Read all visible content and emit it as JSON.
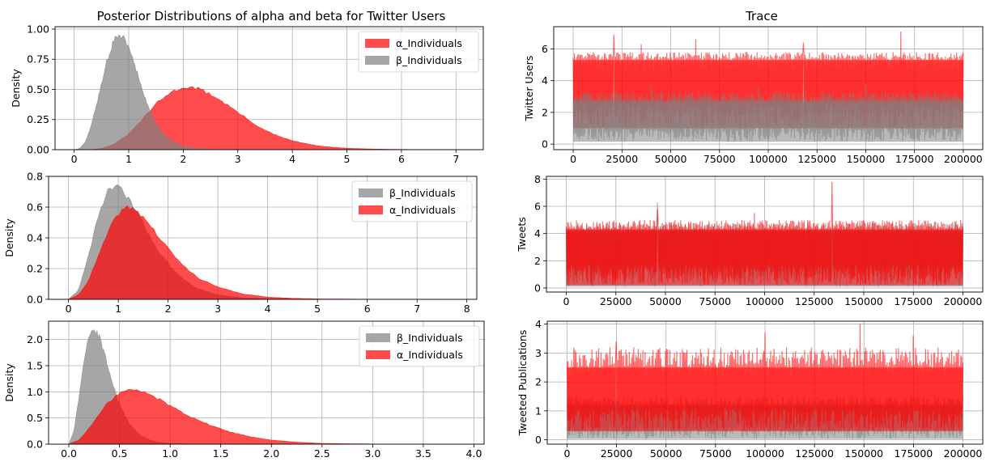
{
  "figure": {
    "left_title": "Posterior Distributions of alpha and beta for Twitter Users",
    "right_title": "Trace"
  },
  "colors": {
    "alpha": "#ff0000",
    "beta": "#808080",
    "grid": "#b0b0b0"
  },
  "chart_data": [
    {
      "type": "area",
      "panel": "hist-1",
      "ylabel": "Density",
      "xlim": [
        -0.35,
        7.5
      ],
      "ylim": [
        0,
        1.02
      ],
      "xticks": [
        0,
        1,
        2,
        3,
        4,
        5,
        6,
        7
      ],
      "xticklabels": [
        "0",
        "1",
        "2",
        "3",
        "4",
        "5",
        "6",
        "7"
      ],
      "yticks": [
        0,
        0.25,
        0.5,
        0.75,
        1.0
      ],
      "yticklabels": [
        "0.00",
        "0.25",
        "0.50",
        "0.75",
        "1.00"
      ],
      "grid": true,
      "legend": {
        "position": "top-right",
        "entries": [
          "α_Individuals",
          "β_Individuals"
        ]
      },
      "series": [
        {
          "name": "α_Individuals",
          "color": "#ff0000",
          "opacity": 0.7,
          "x": [
            0.3,
            0.5,
            0.75,
            1.0,
            1.25,
            1.5,
            1.75,
            2.0,
            2.25,
            2.5,
            2.75,
            3.0,
            3.25,
            3.5,
            3.75,
            4.0,
            4.25,
            4.5,
            4.75,
            5.0,
            5.5,
            6.0,
            6.5,
            7.2
          ],
          "y": [
            0.0,
            0.01,
            0.05,
            0.13,
            0.25,
            0.38,
            0.47,
            0.52,
            0.51,
            0.46,
            0.39,
            0.31,
            0.23,
            0.16,
            0.11,
            0.075,
            0.05,
            0.03,
            0.02,
            0.012,
            0.005,
            0.002,
            0.001,
            0.0
          ]
        },
        {
          "name": "β_Individuals",
          "color": "#808080",
          "opacity": 0.7,
          "x": [
            0.0,
            0.1,
            0.2,
            0.3,
            0.4,
            0.5,
            0.6,
            0.7,
            0.8,
            0.9,
            1.0,
            1.1,
            1.2,
            1.3,
            1.4,
            1.5,
            1.6,
            1.8,
            2.0,
            2.2,
            2.5,
            3.0
          ],
          "y": [
            0.0,
            0.01,
            0.06,
            0.18,
            0.35,
            0.55,
            0.73,
            0.87,
            0.95,
            0.94,
            0.85,
            0.72,
            0.57,
            0.43,
            0.31,
            0.22,
            0.15,
            0.07,
            0.03,
            0.012,
            0.004,
            0.0
          ]
        }
      ]
    },
    {
      "type": "area",
      "panel": "hist-2",
      "ylabel": "Density",
      "xlim": [
        -0.4,
        8.2
      ],
      "ylim": [
        0,
        0.8
      ],
      "xticks": [
        0,
        1,
        2,
        3,
        4,
        5,
        6,
        7,
        8
      ],
      "xticklabels": [
        "0",
        "1",
        "2",
        "3",
        "4",
        "5",
        "6",
        "7",
        "8"
      ],
      "yticks": [
        0,
        0.2,
        0.4,
        0.6,
        0.8
      ],
      "yticklabels": [
        "0.0",
        "0.2",
        "0.4",
        "0.6",
        "0.8"
      ],
      "grid": true,
      "legend": {
        "position": "top-right",
        "entries": [
          "β_Individuals",
          "α_Individuals"
        ]
      },
      "series": [
        {
          "name": "β_Individuals",
          "color": "#808080",
          "opacity": 0.7,
          "x": [
            0.0,
            0.2,
            0.4,
            0.6,
            0.8,
            1.0,
            1.2,
            1.4,
            1.6,
            1.8,
            2.0,
            2.3,
            2.6,
            3.0,
            3.5,
            4.0,
            5.0,
            6.5
          ],
          "y": [
            0.0,
            0.06,
            0.28,
            0.55,
            0.71,
            0.73,
            0.66,
            0.55,
            0.43,
            0.32,
            0.23,
            0.13,
            0.07,
            0.03,
            0.01,
            0.004,
            0.001,
            0.0
          ]
        },
        {
          "name": "α_Individuals",
          "color": "#ff0000",
          "opacity": 0.7,
          "x": [
            0.0,
            0.2,
            0.4,
            0.6,
            0.8,
            1.0,
            1.2,
            1.4,
            1.6,
            1.8,
            2.0,
            2.3,
            2.6,
            3.0,
            3.5,
            4.0,
            4.5,
            5.0,
            6.0,
            7.5
          ],
          "y": [
            0.0,
            0.03,
            0.12,
            0.28,
            0.44,
            0.56,
            0.6,
            0.57,
            0.5,
            0.41,
            0.33,
            0.22,
            0.14,
            0.08,
            0.035,
            0.015,
            0.007,
            0.003,
            0.001,
            0.0
          ]
        }
      ]
    },
    {
      "type": "area",
      "panel": "hist-3",
      "ylabel": "Density",
      "xlim": [
        -0.2,
        4.1
      ],
      "ylim": [
        0,
        2.35
      ],
      "xticks": [
        0,
        0.5,
        1.0,
        1.5,
        2.0,
        2.5,
        3.0,
        3.5,
        4.0
      ],
      "xticklabels": [
        "0.0",
        "0.5",
        "1.0",
        "1.5",
        "2.0",
        "2.5",
        "3.0",
        "3.5",
        "4.0"
      ],
      "yticks": [
        0,
        0.5,
        1.0,
        1.5,
        2.0
      ],
      "yticklabels": [
        "0.0",
        "0.5",
        "1.0",
        "1.5",
        "2.0"
      ],
      "grid": true,
      "legend": {
        "position": "top-right",
        "entries": [
          "β_Individuals",
          "α_Individuals"
        ]
      },
      "series": [
        {
          "name": "β_Individuals",
          "color": "#808080",
          "opacity": 0.7,
          "x": [
            0.0,
            0.05,
            0.1,
            0.15,
            0.2,
            0.25,
            0.3,
            0.35,
            0.4,
            0.45,
            0.5,
            0.6,
            0.7,
            0.8,
            0.9,
            1.0,
            1.2,
            1.5
          ],
          "y": [
            0.0,
            0.25,
            0.9,
            1.6,
            2.05,
            2.2,
            2.05,
            1.75,
            1.4,
            1.05,
            0.75,
            0.38,
            0.18,
            0.08,
            0.035,
            0.015,
            0.003,
            0.0
          ]
        },
        {
          "name": "α_Individuals",
          "color": "#ff0000",
          "opacity": 0.7,
          "x": [
            0.0,
            0.1,
            0.2,
            0.3,
            0.4,
            0.5,
            0.6,
            0.7,
            0.8,
            0.9,
            1.0,
            1.2,
            1.4,
            1.6,
            1.8,
            2.0,
            2.2,
            2.5,
            3.0,
            3.6
          ],
          "y": [
            0.0,
            0.08,
            0.3,
            0.57,
            0.82,
            0.98,
            1.04,
            1.02,
            0.95,
            0.85,
            0.74,
            0.53,
            0.36,
            0.23,
            0.14,
            0.08,
            0.045,
            0.015,
            0.003,
            0.0
          ]
        }
      ]
    },
    {
      "type": "line",
      "panel": "trace-1",
      "ylabel": "Twitter Users",
      "xlim": [
        -10000,
        210000
      ],
      "ylim": [
        -0.35,
        7.4
      ],
      "xticks": [
        0,
        25000,
        50000,
        75000,
        100000,
        125000,
        150000,
        175000,
        200000
      ],
      "xticklabels": [
        "0",
        "25000",
        "50000",
        "75000",
        "100000",
        "125000",
        "150000",
        "175000",
        "200000"
      ],
      "yticks": [
        0,
        2,
        4,
        6
      ],
      "yticklabels": [
        "0",
        "2",
        "4",
        "6"
      ],
      "grid": true,
      "series": [
        {
          "name": "α_Individuals",
          "color": "#ff0000",
          "opacity": 0.6,
          "x_range": [
            0,
            200000
          ],
          "band_low": 1.0,
          "band_high": 5.3,
          "typical_max": 5.8,
          "spikes": [
            [
              21000,
              6.9
            ],
            [
              63000,
              6.6
            ],
            [
              168000,
              7.1
            ],
            [
              118000,
              6.4
            ],
            [
              35000,
              6.3
            ]
          ]
        },
        {
          "name": "β_Individuals",
          "color": "#808080",
          "opacity": 0.6,
          "x_range": [
            0,
            200000
          ],
          "band_low": 0.15,
          "band_high": 2.7,
          "typical_max": 3.3,
          "spikes": [
            [
              40000,
              3.7
            ],
            [
              95000,
              3.6
            ],
            [
              150000,
              3.8
            ]
          ]
        }
      ]
    },
    {
      "type": "line",
      "panel": "trace-2",
      "ylabel": "Tweets",
      "xlim": [
        -10000,
        210000
      ],
      "ylim": [
        -0.3,
        8.2
      ],
      "xticks": [
        0,
        25000,
        50000,
        75000,
        100000,
        125000,
        150000,
        175000,
        200000
      ],
      "xticklabels": [
        "0",
        "25000",
        "50000",
        "75000",
        "100000",
        "125000",
        "150000",
        "175000",
        "200000"
      ],
      "yticks": [
        0,
        2,
        4,
        6,
        8
      ],
      "yticklabels": [
        "0",
        "2",
        "4",
        "6",
        "8"
      ],
      "grid": true,
      "series": [
        {
          "name": "β_Individuals",
          "color": "#808080",
          "opacity": 0.6,
          "x_range": [
            0,
            200000
          ],
          "band_low": 0.1,
          "band_high": 4.2,
          "typical_max": 4.8,
          "spikes": [
            [
              46000,
              6.3
            ]
          ]
        },
        {
          "name": "α_Individuals",
          "color": "#ff0000",
          "opacity": 0.6,
          "x_range": [
            0,
            200000
          ],
          "band_low": 0.2,
          "band_high": 4.3,
          "typical_max": 5.0,
          "spikes": [
            [
              134000,
              7.8
            ],
            [
              46000,
              5.8
            ],
            [
              95000,
              5.5
            ]
          ]
        }
      ]
    },
    {
      "type": "line",
      "panel": "trace-3",
      "ylabel": "Tweeted Publications",
      "xlim": [
        -10000,
        210000
      ],
      "ylim": [
        -0.15,
        4.1
      ],
      "xticks": [
        0,
        25000,
        50000,
        75000,
        100000,
        125000,
        150000,
        175000,
        200000
      ],
      "xticklabels": [
        "0",
        "25000",
        "50000",
        "75000",
        "100000",
        "125000",
        "150000",
        "175000",
        "200000"
      ],
      "yticks": [
        0,
        1,
        2,
        3,
        4
      ],
      "yticklabels": [
        "0",
        "1",
        "2",
        "3",
        "4"
      ],
      "grid": true,
      "series": [
        {
          "name": "β_Individuals",
          "color": "#808080",
          "opacity": 0.6,
          "x_range": [
            0,
            200000
          ],
          "band_low": 0.03,
          "band_high": 1.2,
          "typical_max": 1.5,
          "spikes": []
        },
        {
          "name": "α_Individuals",
          "color": "#ff0000",
          "opacity": 0.6,
          "x_range": [
            0,
            200000
          ],
          "band_low": 0.3,
          "band_high": 2.5,
          "typical_max": 3.2,
          "spikes": [
            [
              148000,
              4.0
            ],
            [
              100000,
              3.7
            ],
            [
              175000,
              3.6
            ],
            [
              25000,
              3.4
            ]
          ]
        }
      ]
    }
  ]
}
